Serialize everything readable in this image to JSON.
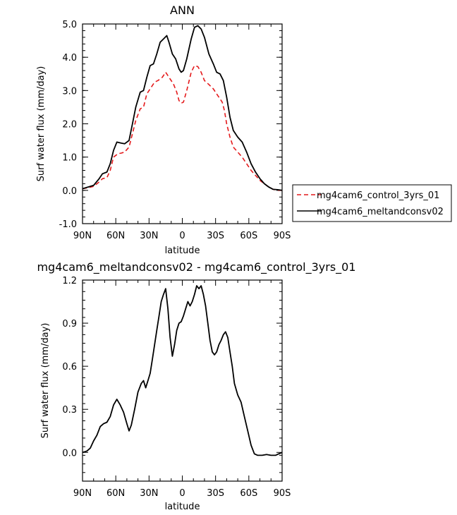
{
  "chart_data": [
    {
      "type": "line",
      "title": "ANN",
      "xlabel": "latitude",
      "ylabel": "Surf water flux (mm/day)",
      "xlim": [
        90,
        -90
      ],
      "ylim": [
        -1.0,
        5.0
      ],
      "xticks": [
        90,
        60,
        30,
        0,
        -30,
        -60,
        -90
      ],
      "xtick_labels": [
        "90N",
        "60N",
        "30N",
        "0",
        "30S",
        "60S",
        "90S"
      ],
      "yticks": [
        -1.0,
        0.0,
        1.0,
        2.0,
        3.0,
        4.0,
        5.0
      ],
      "ytick_labels": [
        "-1.0",
        "0.0",
        "1.0",
        "2.0",
        "3.0",
        "4.0",
        "5.0"
      ],
      "legend_placement": "right",
      "series": [
        {
          "name": "mg4cam6_control_3yrs_01",
          "color": "#e41a1c",
          "dash": "dashed",
          "points": [
            [
              90,
              0.05
            ],
            [
              85,
              0.08
            ],
            [
              80,
              0.12
            ],
            [
              75,
              0.25
            ],
            [
              72,
              0.35
            ],
            [
              68,
              0.38
            ],
            [
              65,
              0.6
            ],
            [
              62,
              1.0
            ],
            [
              58,
              1.1
            ],
            [
              55,
              1.12
            ],
            [
              52,
              1.15
            ],
            [
              48,
              1.3
            ],
            [
              45,
              1.7
            ],
            [
              42,
              2.1
            ],
            [
              38,
              2.45
            ],
            [
              35,
              2.5
            ],
            [
              32,
              2.9
            ],
            [
              28,
              3.1
            ],
            [
              25,
              3.25
            ],
            [
              22,
              3.3
            ],
            [
              18,
              3.4
            ],
            [
              15,
              3.55
            ],
            [
              12,
              3.4
            ],
            [
              8,
              3.2
            ],
            [
              5,
              2.95
            ],
            [
              3,
              2.7
            ],
            [
              1,
              2.62
            ],
            [
              -1,
              2.65
            ],
            [
              -4,
              3.0
            ],
            [
              -8,
              3.55
            ],
            [
              -11,
              3.75
            ],
            [
              -14,
              3.72
            ],
            [
              -17,
              3.55
            ],
            [
              -20,
              3.3
            ],
            [
              -24,
              3.18
            ],
            [
              -28,
              3.05
            ],
            [
              -32,
              2.85
            ],
            [
              -36,
              2.65
            ],
            [
              -38,
              2.4
            ],
            [
              -40,
              2.0
            ],
            [
              -43,
              1.6
            ],
            [
              -46,
              1.3
            ],
            [
              -50,
              1.15
            ],
            [
              -54,
              1.0
            ],
            [
              -58,
              0.8
            ],
            [
              -62,
              0.6
            ],
            [
              -66,
              0.45
            ],
            [
              -70,
              0.3
            ],
            [
              -74,
              0.2
            ],
            [
              -78,
              0.1
            ],
            [
              -82,
              0.03
            ],
            [
              -86,
              0.0
            ],
            [
              -90,
              0.0
            ]
          ]
        },
        {
          "name": "mg4cam6_meltandconsv02",
          "color": "#000000",
          "dash": "solid",
          "points": [
            [
              90,
              0.05
            ],
            [
              85,
              0.1
            ],
            [
              80,
              0.15
            ],
            [
              75,
              0.35
            ],
            [
              72,
              0.5
            ],
            [
              68,
              0.55
            ],
            [
              65,
              0.8
            ],
            [
              62,
              1.2
            ],
            [
              59,
              1.45
            ],
            [
              55,
              1.42
            ],
            [
              52,
              1.4
            ],
            [
              48,
              1.5
            ],
            [
              45,
              2.0
            ],
            [
              42,
              2.5
            ],
            [
              38,
              2.95
            ],
            [
              35,
              3.0
            ],
            [
              32,
              3.4
            ],
            [
              29,
              3.75
            ],
            [
              26,
              3.8
            ],
            [
              23,
              4.1
            ],
            [
              20,
              4.45
            ],
            [
              17,
              4.55
            ],
            [
              14,
              4.65
            ],
            [
              12,
              4.45
            ],
            [
              9,
              4.1
            ],
            [
              6,
              3.95
            ],
            [
              3,
              3.65
            ],
            [
              1,
              3.55
            ],
            [
              -1,
              3.6
            ],
            [
              -4,
              3.95
            ],
            [
              -8,
              4.55
            ],
            [
              -11,
              4.9
            ],
            [
              -14,
              4.95
            ],
            [
              -17,
              4.85
            ],
            [
              -20,
              4.6
            ],
            [
              -24,
              4.1
            ],
            [
              -28,
              3.8
            ],
            [
              -31,
              3.55
            ],
            [
              -34,
              3.5
            ],
            [
              -37,
              3.3
            ],
            [
              -40,
              2.8
            ],
            [
              -43,
              2.2
            ],
            [
              -46,
              1.8
            ],
            [
              -50,
              1.6
            ],
            [
              -54,
              1.45
            ],
            [
              -58,
              1.15
            ],
            [
              -62,
              0.8
            ],
            [
              -66,
              0.55
            ],
            [
              -70,
              0.35
            ],
            [
              -74,
              0.2
            ],
            [
              -78,
              0.1
            ],
            [
              -82,
              0.03
            ],
            [
              -86,
              0.02
            ],
            [
              -90,
              0.0
            ]
          ]
        }
      ]
    },
    {
      "type": "line",
      "title": "mg4cam6_meltandconsv02 - mg4cam6_control_3yrs_01",
      "xlabel": "latitude",
      "ylabel": "Surf water flux (mm/day)",
      "xlim": [
        90,
        -90
      ],
      "ylim": [
        -0.2,
        1.2
      ],
      "xticks": [
        90,
        60,
        30,
        0,
        -30,
        -60,
        -90
      ],
      "xtick_labels": [
        "90N",
        "60N",
        "30N",
        "0",
        "30S",
        "60S",
        "90S"
      ],
      "yticks": [
        0.0,
        0.3,
        0.6,
        0.9,
        1.2
      ],
      "ytick_labels": [
        "0.0",
        "0.3",
        "0.6",
        "0.9",
        "1.2"
      ],
      "series": [
        {
          "color": "#000000",
          "dash": "solid",
          "points": [
            [
              90,
              0.0
            ],
            [
              86,
              0.01
            ],
            [
              83,
              0.03
            ],
            [
              80,
              0.08
            ],
            [
              77,
              0.12
            ],
            [
              74,
              0.18
            ],
            [
              71,
              0.2
            ],
            [
              68,
              0.21
            ],
            [
              65,
              0.25
            ],
            [
              62,
              0.33
            ],
            [
              59,
              0.37
            ],
            [
              56,
              0.33
            ],
            [
              53,
              0.28
            ],
            [
              50,
              0.2
            ],
            [
              48,
              0.15
            ],
            [
              46,
              0.19
            ],
            [
              43,
              0.3
            ],
            [
              40,
              0.42
            ],
            [
              37,
              0.48
            ],
            [
              35,
              0.5
            ],
            [
              33,
              0.45
            ],
            [
              31,
              0.5
            ],
            [
              29,
              0.55
            ],
            [
              27,
              0.65
            ],
            [
              25,
              0.75
            ],
            [
              23,
              0.85
            ],
            [
              21,
              0.95
            ],
            [
              19,
              1.05
            ],
            [
              17,
              1.1
            ],
            [
              15,
              1.14
            ],
            [
              13,
              1.0
            ],
            [
              11,
              0.8
            ],
            [
              9,
              0.67
            ],
            [
              7,
              0.75
            ],
            [
              5,
              0.85
            ],
            [
              3,
              0.9
            ],
            [
              1,
              0.91
            ],
            [
              -1,
              0.95
            ],
            [
              -3,
              1.0
            ],
            [
              -5,
              1.05
            ],
            [
              -7,
              1.02
            ],
            [
              -9,
              1.05
            ],
            [
              -11,
              1.1
            ],
            [
              -13,
              1.16
            ],
            [
              -15,
              1.14
            ],
            [
              -17,
              1.16
            ],
            [
              -19,
              1.1
            ],
            [
              -21,
              1.02
            ],
            [
              -23,
              0.9
            ],
            [
              -25,
              0.78
            ],
            [
              -27,
              0.7
            ],
            [
              -29,
              0.68
            ],
            [
              -31,
              0.7
            ],
            [
              -33,
              0.75
            ],
            [
              -35,
              0.78
            ],
            [
              -37,
              0.82
            ],
            [
              -39,
              0.84
            ],
            [
              -41,
              0.8
            ],
            [
              -43,
              0.7
            ],
            [
              -45,
              0.6
            ],
            [
              -47,
              0.48
            ],
            [
              -50,
              0.4
            ],
            [
              -53,
              0.35
            ],
            [
              -56,
              0.25
            ],
            [
              -59,
              0.15
            ],
            [
              -62,
              0.05
            ],
            [
              -65,
              -0.01
            ],
            [
              -68,
              -0.02
            ],
            [
              -72,
              -0.02
            ],
            [
              -76,
              -0.015
            ],
            [
              -80,
              -0.02
            ],
            [
              -84,
              -0.02
            ],
            [
              -87,
              -0.01
            ],
            [
              -90,
              0.0
            ]
          ]
        }
      ]
    }
  ]
}
